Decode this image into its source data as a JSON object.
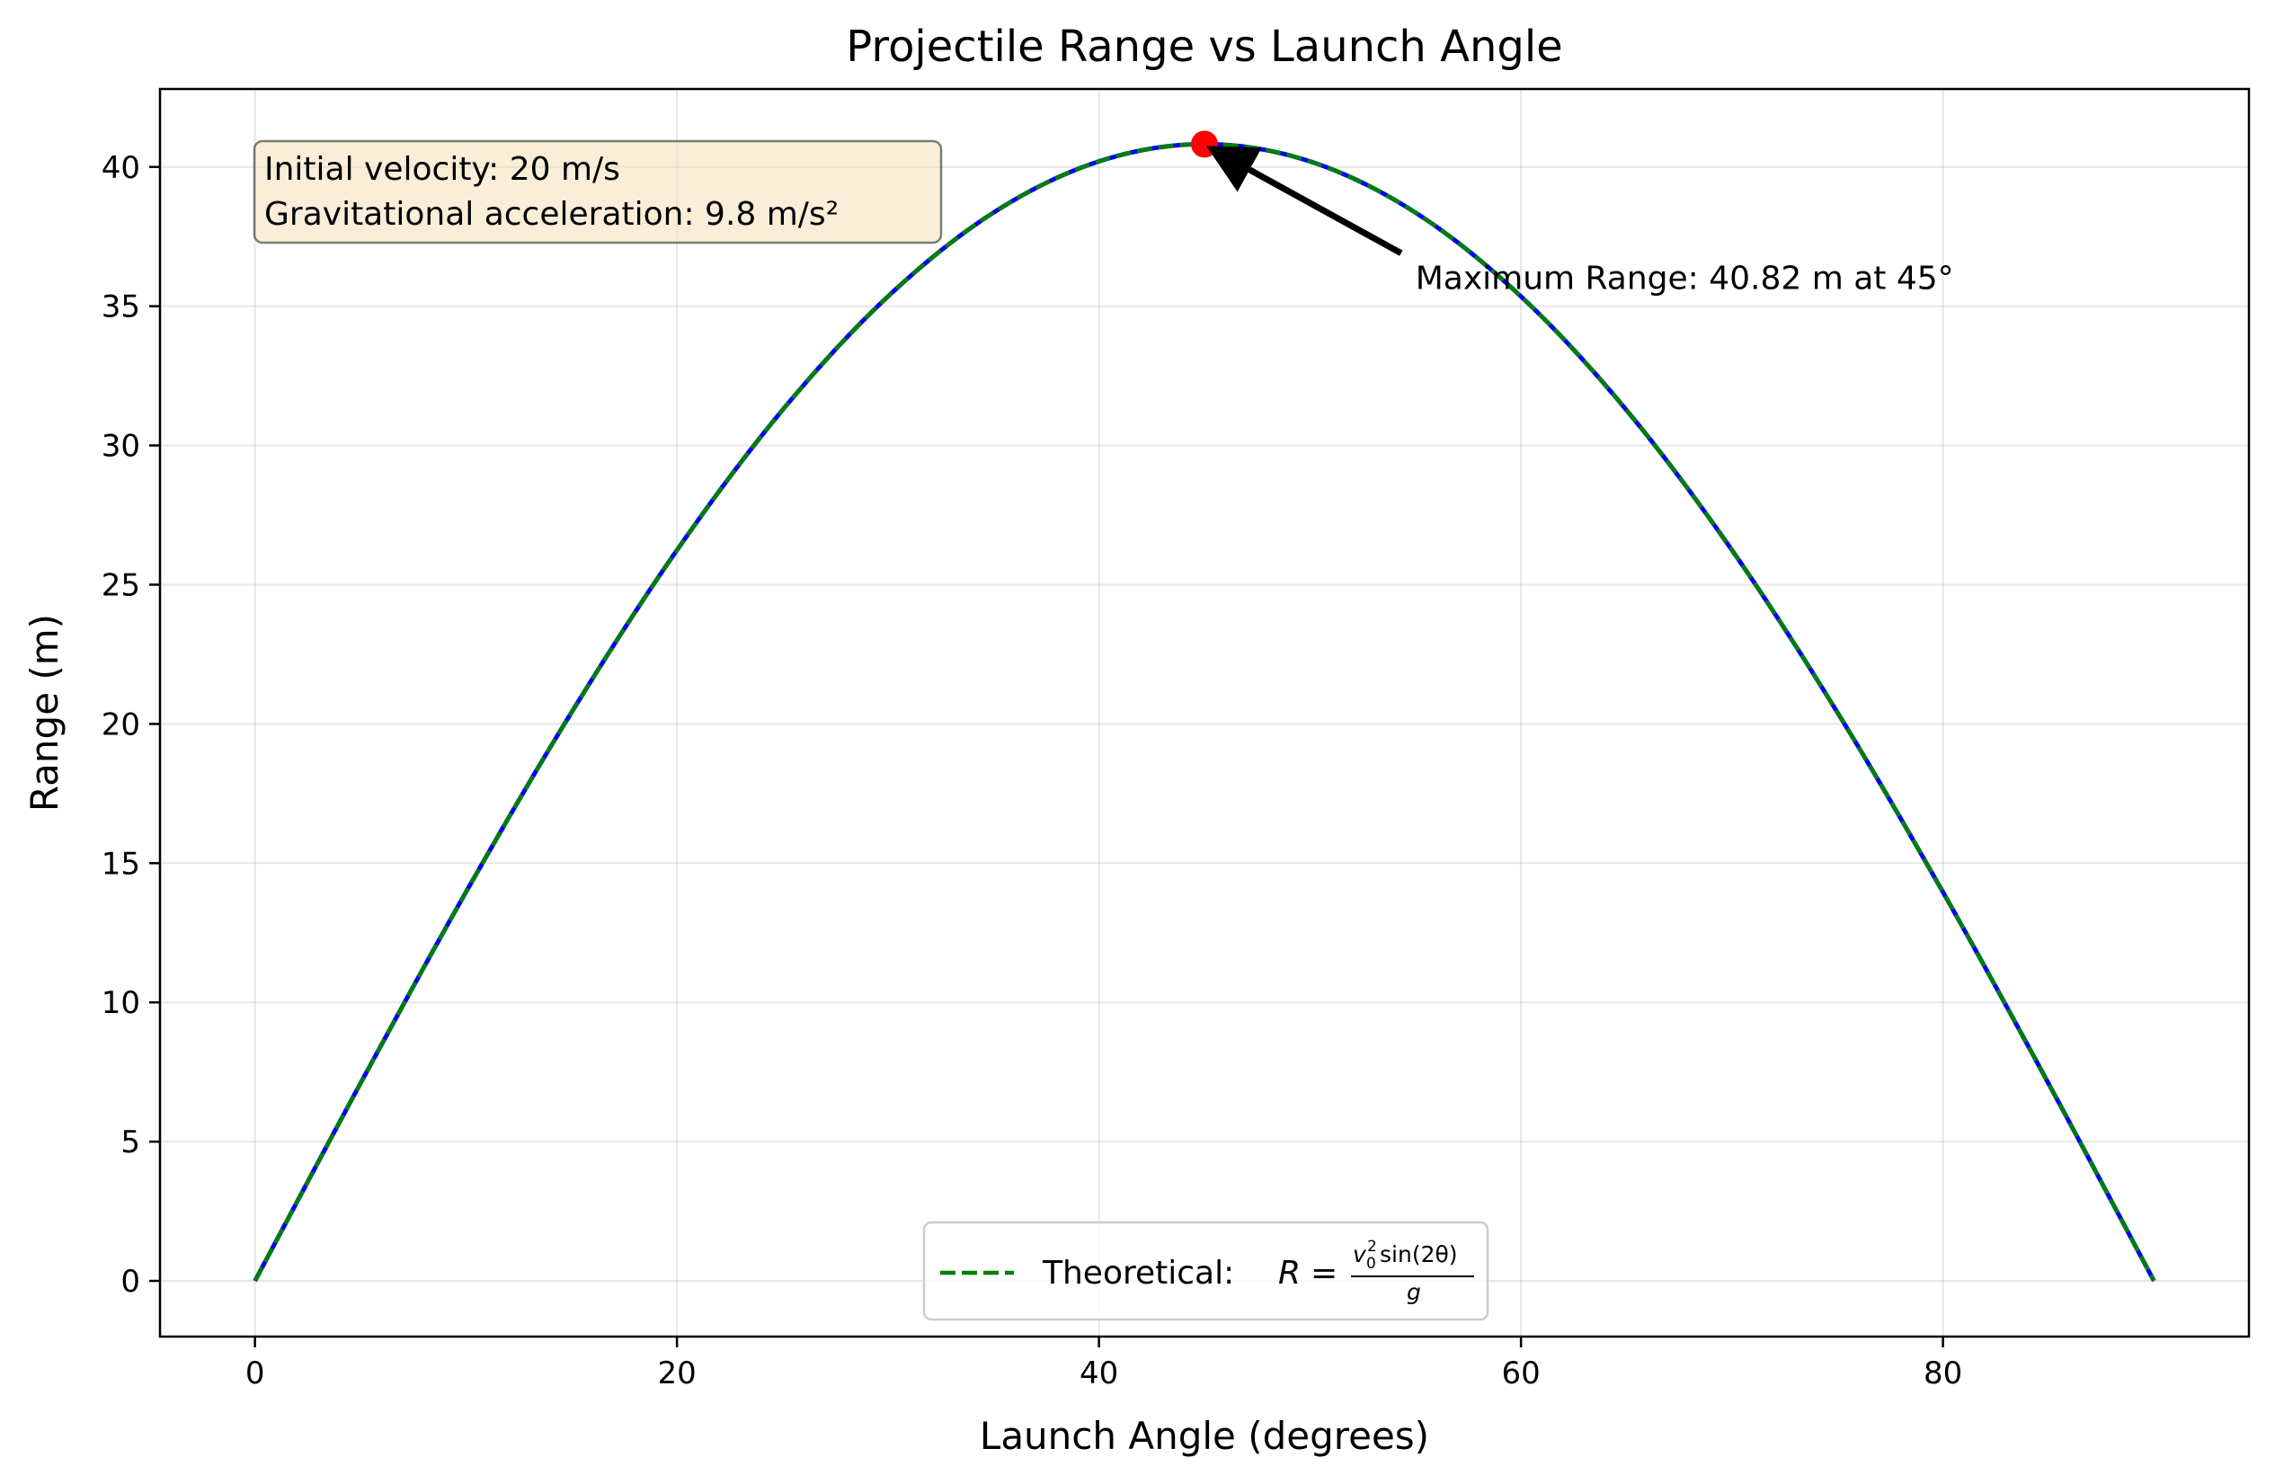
{
  "chart_data": {
    "type": "line",
    "title": "Projectile Range vs Launch Angle",
    "xlabel": "Launch Angle (degrees)",
    "ylabel": "Range (m)",
    "xlim": [
      -4.5,
      94.5
    ],
    "ylim": [
      -2.0,
      42.8
    ],
    "xticks": [
      0,
      20,
      40,
      60,
      80
    ],
    "yticks": [
      0,
      5,
      10,
      15,
      20,
      25,
      30,
      35,
      40
    ],
    "grid": true,
    "params": {
      "v0": 20,
      "g": 9.8
    },
    "x": [
      0,
      5,
      10,
      15,
      20,
      25,
      30,
      35,
      40,
      45,
      50,
      55,
      60,
      65,
      70,
      75,
      80,
      85,
      90
    ],
    "series": [
      {
        "name": "",
        "style": "solid",
        "color": "#0000ff",
        "values": [
          0,
          7.09,
          13.96,
          20.41,
          26.24,
          31.27,
          35.35,
          38.36,
          40.2,
          40.82,
          40.2,
          38.36,
          35.35,
          31.27,
          26.24,
          20.41,
          13.96,
          7.09,
          0
        ]
      },
      {
        "name": "Theoretical:",
        "style": "dashed",
        "color": "#008000",
        "values": [
          0,
          7.09,
          13.96,
          20.41,
          26.24,
          31.27,
          35.35,
          38.36,
          40.2,
          40.82,
          40.2,
          38.36,
          35.35,
          31.27,
          26.24,
          20.41,
          13.96,
          7.09,
          0
        ]
      }
    ],
    "max_point": {
      "x": 45,
      "y": 40.82,
      "color": "#ff0000"
    },
    "annotation": {
      "text": "Maximum Range: 40.82 m at 45°",
      "text_x": 55,
      "text_y": 36
    },
    "infobox": {
      "lines": [
        "Initial velocity: 20 m/s",
        "Gravitational acceleration: 9.8 m/s²"
      ],
      "bg_color": "#f5deb3"
    },
    "legend": {
      "placement": "lower-center",
      "formula": {
        "lhs": "R",
        "eq": "=",
        "num_v": "v",
        "num_sup": "2",
        "num_sub": "0",
        "num_rest": "sin(2θ)",
        "den": "g"
      }
    }
  }
}
